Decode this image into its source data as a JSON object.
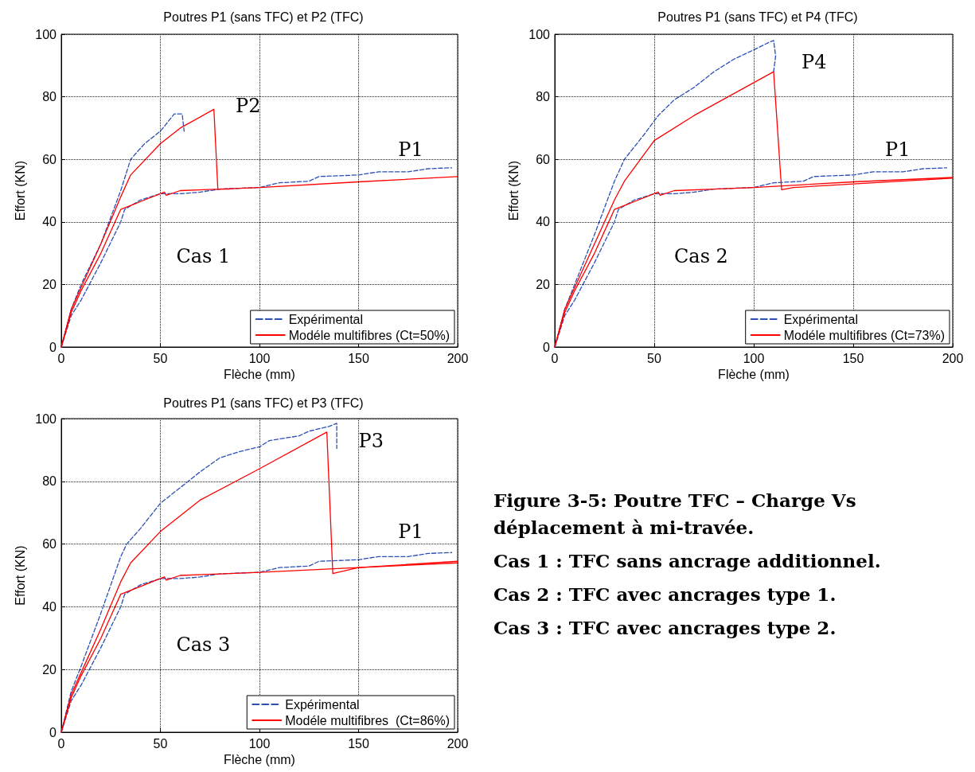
{
  "chart_data": [
    {
      "type": "line",
      "title": "Poutres P1 (sans TFC) et P2 (TFC)",
      "xlabel": "Flèche (mm)",
      "ylabel": "Effort (KN)",
      "xlim": [
        0,
        200
      ],
      "xticks": [
        0,
        50,
        100,
        150,
        200
      ],
      "ylim": [
        0,
        100
      ],
      "yticks": [
        0,
        20,
        40,
        60,
        80,
        100
      ],
      "grid": true,
      "legend": "bottom right",
      "annotations": [
        "P2",
        "P1",
        "Cas 1"
      ],
      "series": [
        {
          "name": "Expérimental",
          "color": "#2b4fb5",
          "line_style": "dashed",
          "x": [
            0,
            5,
            10,
            20,
            30,
            32,
            40,
            50,
            60,
            70,
            80,
            100,
            110,
            125,
            130,
            150,
            160,
            175,
            185,
            197
          ],
          "values": [
            0,
            10,
            15,
            27,
            40,
            44,
            47,
            49,
            49,
            49.5,
            50.5,
            51,
            52.5,
            53,
            54.5,
            55,
            56,
            56,
            57,
            57.3
          ]
        },
        {
          "color": "#2b4fb5",
          "line_style": "dashed",
          "x": [
            0,
            5,
            10,
            20,
            30,
            35,
            42,
            50,
            57,
            61,
            62
          ],
          "values": [
            0,
            12,
            20,
            33,
            50,
            60,
            65,
            69,
            74.5,
            74.5,
            69
          ]
        },
        {
          "name": "Modéle multifibres (Ct=50%)",
          "color": "#ff0000",
          "line_style": "solid",
          "x": [
            0,
            5,
            10,
            20,
            30,
            40,
            52,
            53,
            60,
            80,
            100,
            150,
            200
          ],
          "values": [
            0,
            11,
            18,
            30,
            44,
            46.5,
            49.5,
            48.5,
            50,
            50.5,
            51,
            52.8,
            54.5
          ]
        },
        {
          "color": "#ff0000",
          "line_style": "solid",
          "x": [
            0,
            5,
            10,
            20,
            30,
            35,
            50,
            60,
            77,
            79,
            85
          ],
          "values": [
            0,
            12,
            19,
            33,
            48,
            55,
            65,
            70,
            76,
            50.5,
            50.5
          ]
        }
      ]
    },
    {
      "type": "line",
      "title": "Poutres P1 (sans TFC) et P4 (TFC)",
      "xlabel": "Flèche (mm)",
      "ylabel": "Effort (KN)",
      "xlim": [
        0,
        200
      ],
      "xticks": [
        0,
        50,
        100,
        150,
        200
      ],
      "ylim": [
        0,
        100
      ],
      "yticks": [
        0,
        20,
        40,
        60,
        80,
        100
      ],
      "grid": true,
      "legend": "bottom right",
      "annotations": [
        "P4",
        "P1",
        "Cas 2"
      ],
      "series": [
        {
          "name": "Expérimental",
          "color": "#2b4fb5",
          "line_style": "dashed",
          "x": [
            0,
            5,
            10,
            20,
            30,
            32,
            40,
            50,
            60,
            70,
            80,
            100,
            110,
            125,
            130,
            150,
            160,
            175,
            185,
            197
          ],
          "values": [
            0,
            10,
            15,
            27,
            40,
            44,
            47,
            49,
            49,
            49.5,
            50.5,
            51,
            52.5,
            53,
            54.5,
            55,
            56,
            56,
            57,
            57.3
          ]
        },
        {
          "color": "#2b4fb5",
          "line_style": "dashed",
          "x": [
            0,
            5,
            10,
            20,
            30,
            35,
            45,
            52,
            60,
            70,
            80,
            90,
            100,
            108,
            110,
            111,
            110
          ],
          "values": [
            0,
            12,
            20,
            36,
            53,
            60,
            68,
            74,
            79,
            83,
            88,
            92,
            95,
            97.5,
            98,
            93,
            88
          ]
        },
        {
          "name": "Modéle multifibres (Ct=73%)",
          "color": "#ff0000",
          "line_style": "solid",
          "x": [
            0,
            5,
            10,
            20,
            30,
            40,
            52,
            53,
            60,
            80,
            100,
            150,
            200
          ],
          "values": [
            0,
            11,
            18,
            30,
            44,
            46.5,
            49.5,
            48.5,
            50,
            50.5,
            51,
            52.8,
            54.2
          ]
        },
        {
          "color": "#ff0000",
          "line_style": "solid",
          "x": [
            0,
            5,
            10,
            20,
            30,
            35,
            50,
            70,
            90,
            110,
            114,
            120,
            200
          ],
          "values": [
            0,
            12,
            19,
            33,
            47,
            53,
            66,
            74,
            81,
            88,
            50.3,
            51,
            54
          ]
        }
      ]
    },
    {
      "type": "line",
      "title": "Poutres P1 (sans TFC) et P3 (TFC)",
      "xlabel": "Flèche (mm)",
      "ylabel": "Effort (KN)",
      "xlim": [
        0,
        200
      ],
      "xticks": [
        0,
        50,
        100,
        150,
        200
      ],
      "ylim": [
        0,
        100
      ],
      "yticks": [
        0,
        20,
        40,
        60,
        80,
        100
      ],
      "grid": true,
      "legend": "bottom right",
      "annotations": [
        "P3",
        "P1",
        "Cas 3"
      ],
      "series": [
        {
          "name": "Expérimental",
          "color": "#2b4fb5",
          "line_style": "dashed",
          "x": [
            0,
            5,
            10,
            20,
            30,
            32,
            40,
            50,
            60,
            70,
            80,
            100,
            110,
            125,
            130,
            150,
            160,
            175,
            185,
            197
          ],
          "values": [
            0,
            10,
            15,
            27,
            40,
            44,
            47,
            49,
            49,
            49.5,
            50.5,
            51,
            52.5,
            53,
            54.5,
            55,
            56,
            56,
            57,
            57.3
          ]
        },
        {
          "color": "#2b4fb5",
          "line_style": "dashed",
          "x": [
            0,
            5,
            10,
            20,
            30,
            33,
            40,
            50,
            60,
            70,
            80,
            90,
            100,
            105,
            120,
            125,
            135,
            139,
            139
          ],
          "values": [
            0,
            13,
            21,
            38,
            56,
            60,
            65,
            73,
            78,
            83,
            87.5,
            89.5,
            91,
            93,
            94.5,
            96,
            97.5,
            98.5,
            90.5
          ]
        },
        {
          "name": "Modéle multifibres  (Ct=86%)",
          "color": "#ff0000",
          "line_style": "solid",
          "x": [
            0,
            5,
            10,
            20,
            30,
            40,
            52,
            53,
            60,
            80,
            100,
            150,
            200
          ],
          "values": [
            0,
            11,
            18,
            30,
            44,
            46.5,
            49.5,
            48.5,
            50,
            50.5,
            51,
            52.5,
            54.5
          ]
        },
        {
          "color": "#ff0000",
          "line_style": "solid",
          "x": [
            0,
            5,
            10,
            20,
            30,
            35,
            50,
            70,
            100,
            134,
            137,
            150,
            200
          ],
          "values": [
            0,
            12,
            19,
            33,
            48,
            54,
            64,
            74,
            84,
            95.7,
            50.6,
            52.5,
            54
          ]
        }
      ]
    },
    {
      "type": "other",
      "title": "Figure 3-5: Poutre TFC – Charge Vs déplacement à mi-travée.",
      "annotations": [
        "Cas 1 : TFC sans ancrage additionnel.",
        "Cas 2 : TFC avec ancrages type 1.",
        "Cas 3 : TFC avec ancrages type 2."
      ]
    }
  ]
}
